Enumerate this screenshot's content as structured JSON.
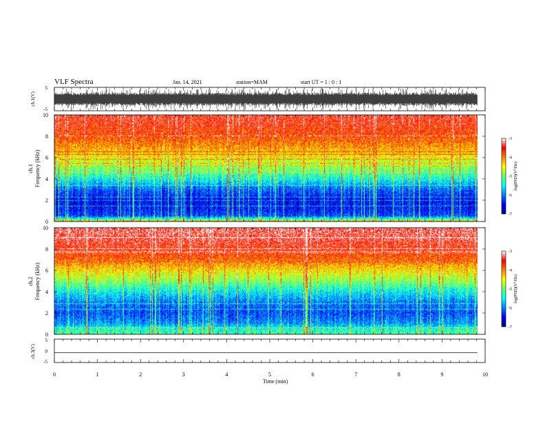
{
  "header": {
    "title": "VLF Spectra",
    "date": "Jan. 14, 2021",
    "station": "station=MAM",
    "start": "start  UT =  1 : 0  : 1"
  },
  "chart_data": [
    {
      "type": "line",
      "panel": "ch1-waveform",
      "ylabel": "ch.1(V)",
      "ylim": [
        -5,
        5
      ],
      "ytick_labels": [
        "5",
        "-5"
      ],
      "xlim": [
        0,
        10
      ],
      "x_end": 9.82,
      "trace": "dense noise filling roughly -4.5 to +4.5 V",
      "color": "#000000"
    },
    {
      "type": "heatmap",
      "panel": "ch1-spectrogram",
      "ylabel": "ch.1\nFrequency (kHz)",
      "ylim": [
        0,
        10
      ],
      "ytick_labels": [
        "0",
        "2",
        "4",
        "6",
        "8",
        "10"
      ],
      "xlim": [
        0,
        10
      ],
      "x_end": 9.82,
      "colorbar": {
        "label": "log(PSD)(V²/Hz)",
        "range": [
          -7,
          -3
        ],
        "tick_labels": [
          "-3",
          "-4",
          "-5",
          "-6",
          "-7"
        ]
      },
      "frequency_profile_khz": [
        0,
        0.5,
        1,
        2,
        3,
        3.5,
        4,
        5,
        6,
        7,
        8,
        9,
        10
      ],
      "log_psd_profile": [
        -4.6,
        -6.2,
        -6.4,
        -6.5,
        -6.1,
        -5.8,
        -5.4,
        -4.9,
        -4.5,
        -4.1,
        -3.8,
        -3.6,
        -3.5
      ]
    },
    {
      "type": "heatmap",
      "panel": "ch2-spectrogram",
      "ylabel": "ch.2\nFrequency (kHz)",
      "ylim": [
        0,
        10
      ],
      "ytick_labels": [
        "0",
        "2",
        "4",
        "6",
        "8",
        "10"
      ],
      "xlim": [
        0,
        10
      ],
      "x_end": 9.82,
      "colorbar": {
        "label": "log(PSD)(V²/Hz)",
        "range": [
          -7,
          -3
        ],
        "tick_labels": [
          "-3",
          "-4",
          "-5",
          "-6",
          "-7"
        ]
      },
      "frequency_profile_khz": [
        0,
        0.5,
        1,
        2,
        3,
        4,
        5,
        6,
        7,
        8,
        9,
        10
      ],
      "log_psd_profile": [
        -5.2,
        -5.4,
        -5.9,
        -6.2,
        -6.0,
        -5.5,
        -4.9,
        -4.4,
        -3.9,
        -3.6,
        -3.4,
        -3.3
      ]
    },
    {
      "type": "line",
      "panel": "ch3-waveform",
      "ylabel": "ch.3(V)",
      "ylim": [
        -5,
        5
      ],
      "ytick_labels": [
        "5",
        "0",
        "-5"
      ],
      "xlim": [
        0,
        10
      ],
      "x_end": 9.82,
      "trace": "flat line near -0.8 V",
      "constant_value": -0.8,
      "xlabel": "Time (min)",
      "xtick_labels": [
        "0",
        "1",
        "2",
        "3",
        "4",
        "5",
        "6",
        "7",
        "8",
        "9",
        "10"
      ],
      "color": "#000000"
    }
  ]
}
